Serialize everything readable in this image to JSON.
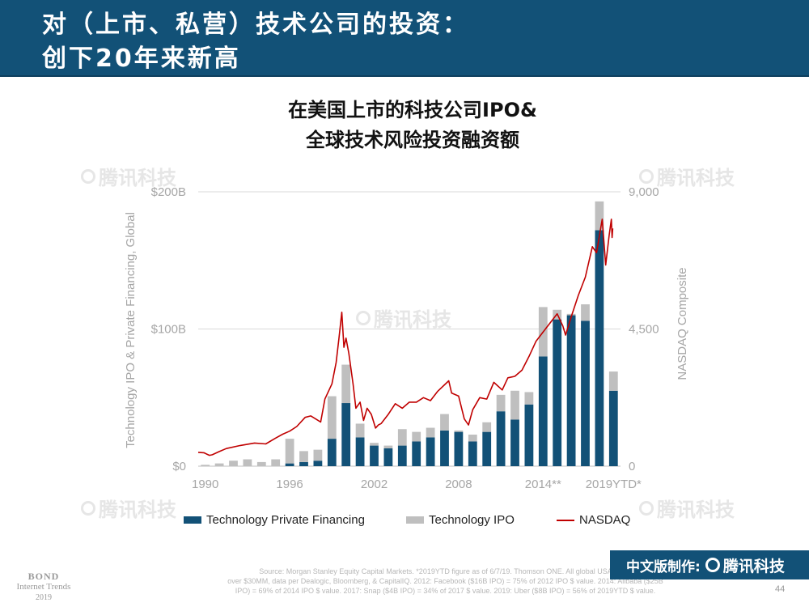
{
  "header": {
    "line1": "对（上市、私营）技术公司的投资：",
    "line2": "创下20年来新高"
  },
  "watermark": {
    "text": "腾讯科技"
  },
  "chart_data": {
    "type": "bar",
    "title": "在美国上市的科技公司IPO&\n全球技术风险投资融资额",
    "title_lines": [
      "在美国上市的科技公司IPO&",
      "全球技术风险投资融资额"
    ],
    "stacked": true,
    "categories": [
      "1990",
      "1991",
      "1992",
      "1993",
      "1994",
      "1995",
      "1996",
      "1997",
      "1998",
      "1999",
      "2000",
      "2001",
      "2002",
      "2003",
      "2004",
      "2005",
      "2006",
      "2007",
      "2008",
      "2009",
      "2010",
      "2011",
      "2012",
      "2013",
      "2014**",
      "2015",
      "2016",
      "2017",
      "2018",
      "2019YTD*"
    ],
    "x_tick_labels": [
      "1990",
      "1996",
      "2002",
      "2008",
      "2014**",
      "2019YTD*"
    ],
    "series": [
      {
        "name": "Technology Private Financing",
        "color": "#125177",
        "values": [
          0,
          0,
          0,
          0,
          0,
          0,
          2,
          3,
          4,
          20,
          46,
          21,
          15,
          13,
          15,
          18,
          21,
          26,
          25,
          18,
          25,
          40,
          34,
          45,
          80,
          107,
          110,
          106,
          172,
          55
        ]
      },
      {
        "name": "Technology IPO",
        "color": "#bfbfbf",
        "values": [
          1,
          2,
          4,
          5,
          3,
          5,
          18,
          8,
          8,
          31,
          28,
          10,
          2,
          2,
          12,
          7,
          7,
          12,
          1,
          5,
          7,
          12,
          21,
          9,
          36,
          7,
          1,
          12,
          21,
          14
        ]
      },
      {
        "name": "NASDAQ",
        "color": "#c00000",
        "type": "line",
        "axis": "right",
        "points": [
          [
            1990.0,
            455
          ],
          [
            1990.4,
            440
          ],
          [
            1990.8,
            355
          ],
          [
            1991.0,
            375
          ],
          [
            1991.5,
            480
          ],
          [
            1992.0,
            580
          ],
          [
            1993.0,
            680
          ],
          [
            1994.0,
            760
          ],
          [
            1994.8,
            730
          ],
          [
            1995.5,
            920
          ],
          [
            1996.0,
            1050
          ],
          [
            1996.5,
            1150
          ],
          [
            1997.0,
            1300
          ],
          [
            1997.6,
            1600
          ],
          [
            1998.0,
            1650
          ],
          [
            1998.7,
            1450
          ],
          [
            1999.0,
            2200
          ],
          [
            1999.5,
            2700
          ],
          [
            1999.8,
            3400
          ],
          [
            2000.0,
            4200
          ],
          [
            2000.2,
            5050
          ],
          [
            2000.35,
            3900
          ],
          [
            2000.5,
            4200
          ],
          [
            2000.7,
            3700
          ],
          [
            2001.0,
            2700
          ],
          [
            2001.2,
            1900
          ],
          [
            2001.5,
            2100
          ],
          [
            2001.75,
            1500
          ],
          [
            2002.0,
            1900
          ],
          [
            2002.3,
            1700
          ],
          [
            2002.6,
            1250
          ],
          [
            2002.8,
            1350
          ],
          [
            2003.0,
            1400
          ],
          [
            2003.5,
            1700
          ],
          [
            2004.0,
            2050
          ],
          [
            2004.5,
            1900
          ],
          [
            2005.0,
            2100
          ],
          [
            2005.5,
            2100
          ],
          [
            2006.0,
            2250
          ],
          [
            2006.5,
            2150
          ],
          [
            2007.0,
            2450
          ],
          [
            2007.8,
            2800
          ],
          [
            2008.0,
            2400
          ],
          [
            2008.5,
            2300
          ],
          [
            2008.9,
            1550
          ],
          [
            2009.2,
            1350
          ],
          [
            2009.5,
            1850
          ],
          [
            2010.0,
            2250
          ],
          [
            2010.5,
            2200
          ],
          [
            2011.0,
            2750
          ],
          [
            2011.6,
            2500
          ],
          [
            2012.0,
            2900
          ],
          [
            2012.5,
            2950
          ],
          [
            2013.0,
            3150
          ],
          [
            2013.5,
            3600
          ],
          [
            2014.0,
            4100
          ],
          [
            2014.5,
            4400
          ],
          [
            2015.0,
            4700
          ],
          [
            2015.5,
            5000
          ],
          [
            2015.9,
            4600
          ],
          [
            2016.1,
            4300
          ],
          [
            2016.5,
            4900
          ],
          [
            2017.0,
            5600
          ],
          [
            2017.5,
            6200
          ],
          [
            2018.0,
            7200
          ],
          [
            2018.3,
            7000
          ],
          [
            2018.7,
            8100
          ],
          [
            2018.95,
            6600
          ],
          [
            2019.2,
            7600
          ],
          [
            2019.35,
            8100
          ],
          [
            2019.4,
            7500
          ],
          [
            2019.45,
            7800
          ]
        ]
      }
    ],
    "ylabel": "Technology IPO & Private Financing, Global",
    "ylabel_right": "NASDAQ Composite",
    "ylim": [
      0,
      200
    ],
    "y_ticks": [
      {
        "value": 0,
        "label": "$0"
      },
      {
        "value": 100,
        "label": "$100B"
      },
      {
        "value": 200,
        "label": "$200B"
      }
    ],
    "ylim_right": [
      0,
      9000
    ],
    "y_ticks_right": [
      {
        "value": 0,
        "label": "0"
      },
      {
        "value": 4500,
        "label": "4,500"
      },
      {
        "value": 9000,
        "label": "9,000"
      }
    ],
    "grid": true,
    "legend": "bottom"
  },
  "footer": {
    "source_lines": [
      "Source: Morgan Stanley Equity Capital Markets. *2019YTD figure as of 6/7/19. Thomson ONE. All global USA-listed",
      "over $30MM, data per Dealogic, Bloomberg, & CapitalIQ. 2012: Facebook ($16B IPO) = 75% of 2012 IPO $ value. 2014: Alibaba ($25B",
      "IPO) = 69% of 2014 IPO $ value. 2017: Snap ($4B IPO) = 34% of 2017 $ value. 2019: Uber ($8B IPO) = 56% of 2019YTD $ value."
    ],
    "bond_title": "BOND",
    "bond_subtitle": "Internet Trends",
    "bond_year": "2019",
    "badge_text": "中文版制作:",
    "badge_brand": "腾讯科技",
    "page_number": "44"
  }
}
